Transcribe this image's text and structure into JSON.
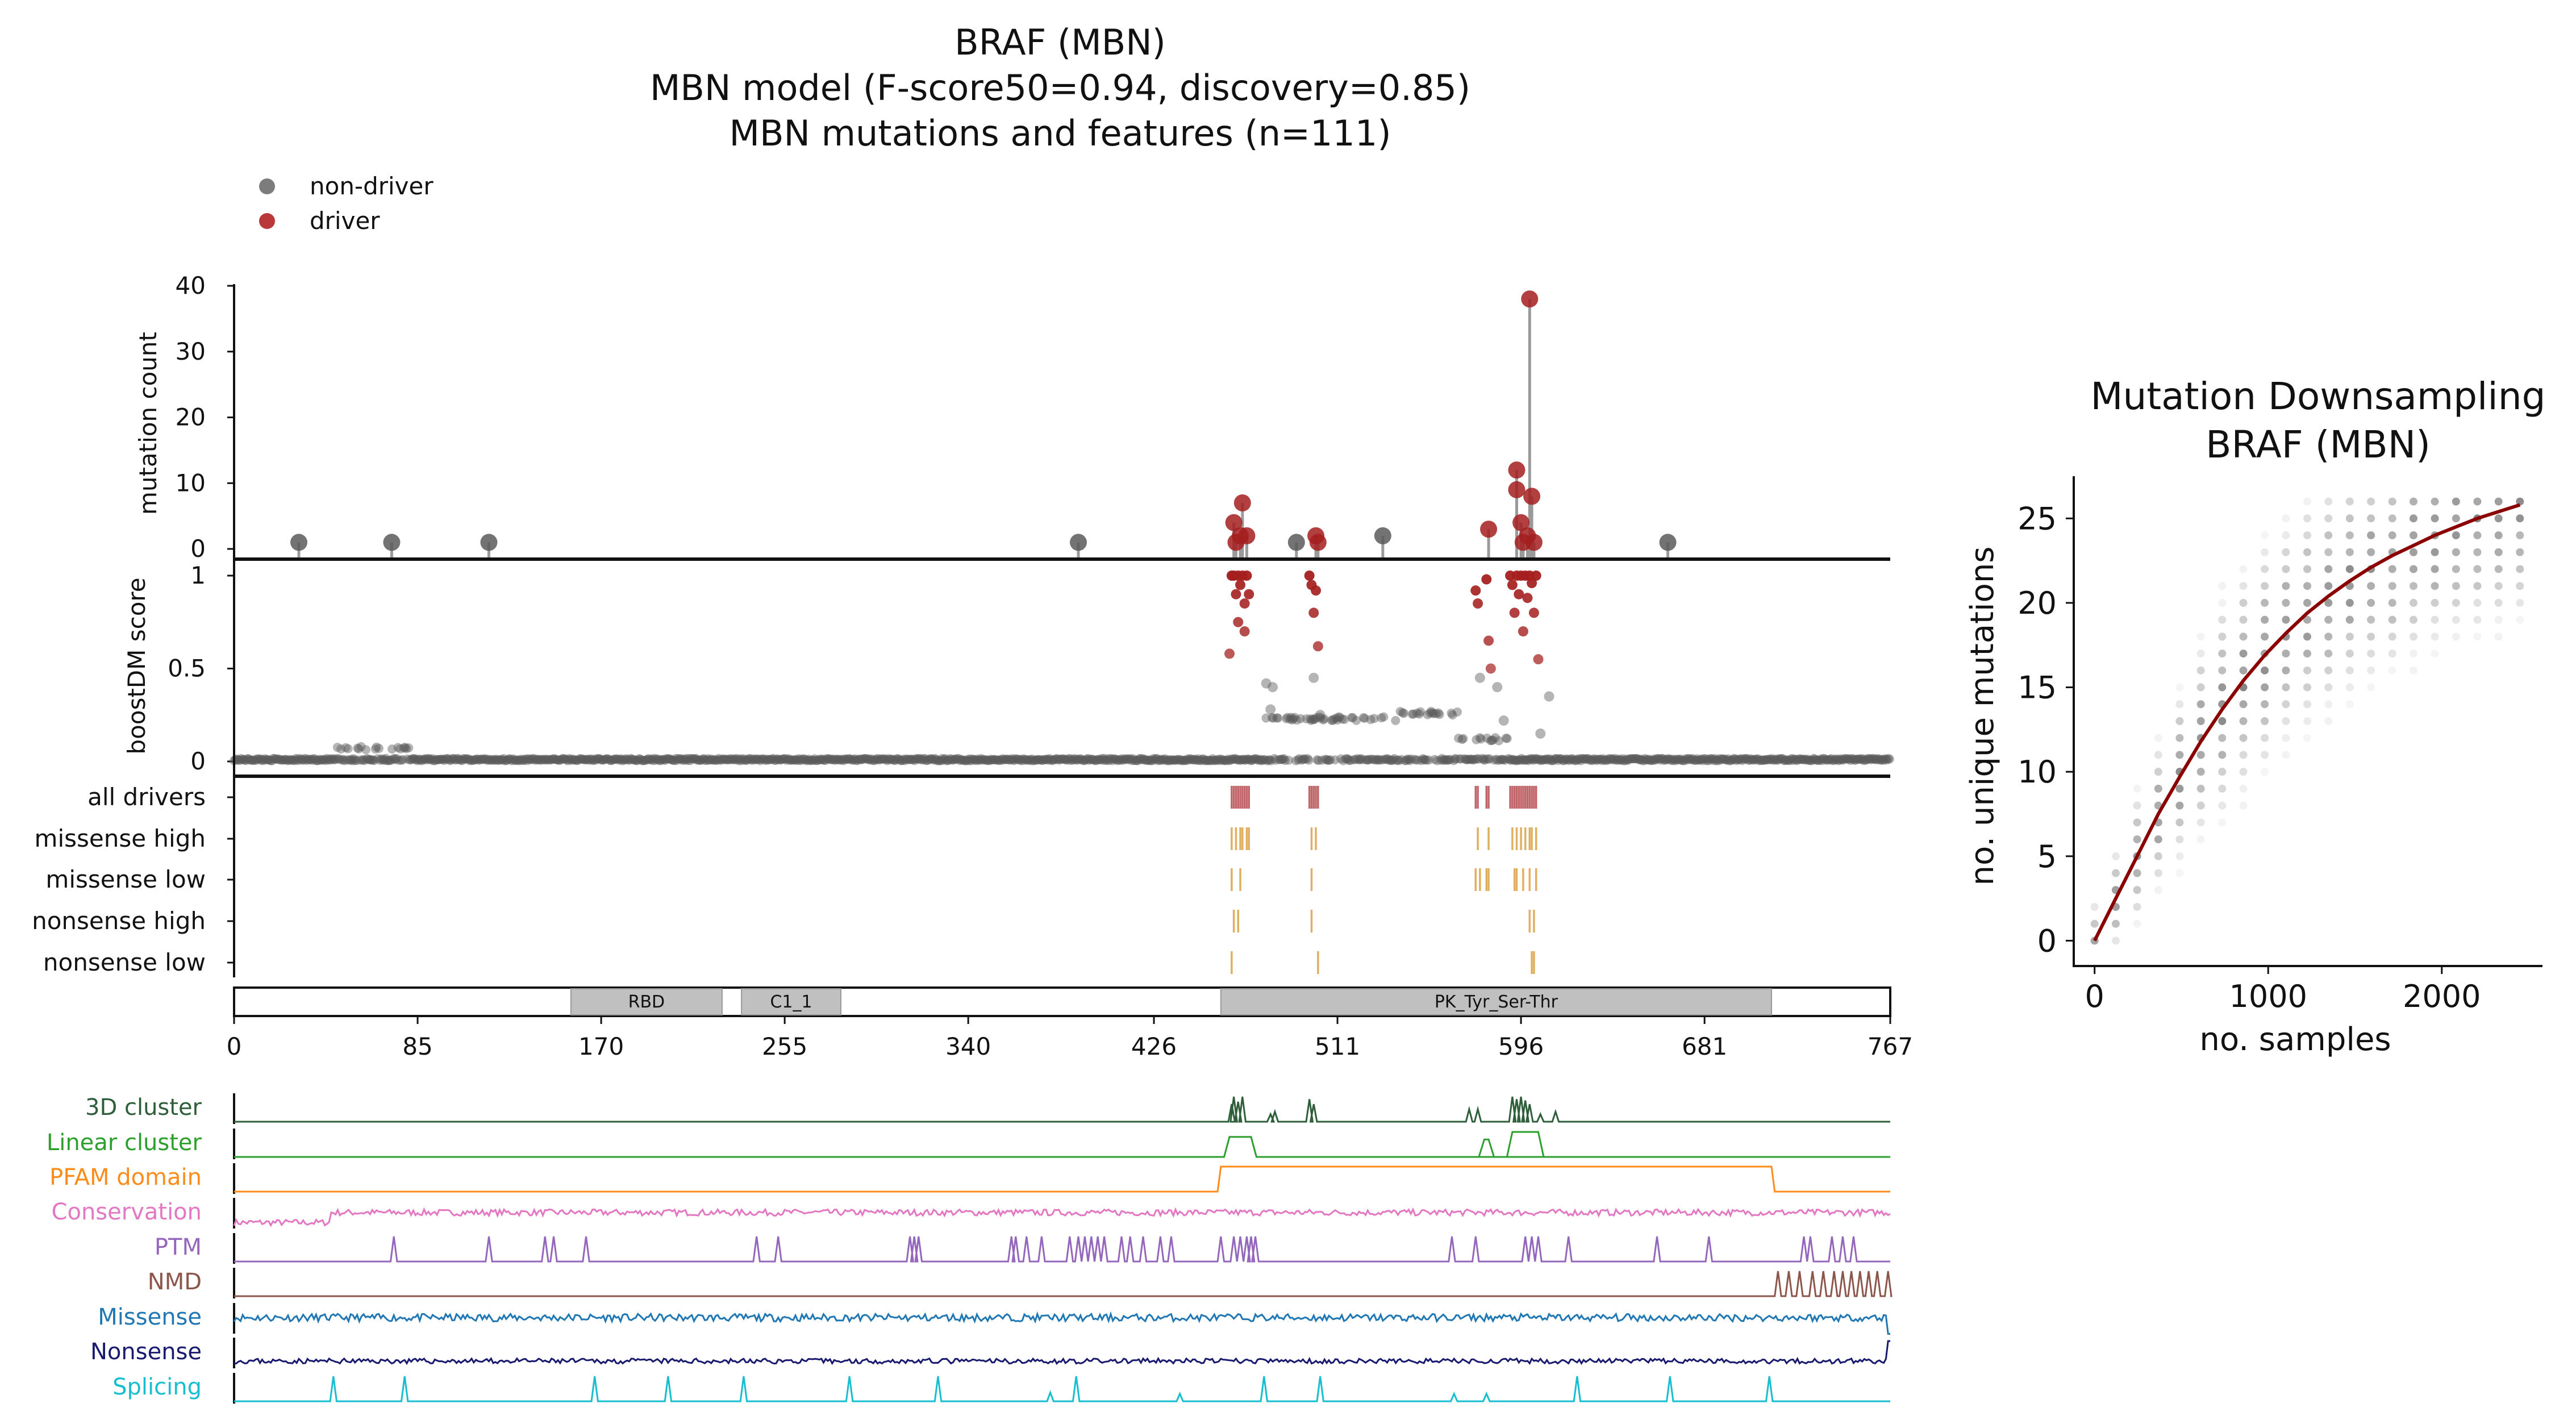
{
  "title_lines": [
    "BRAF (MBN)",
    "MBN model (F-score50=0.94, discovery=0.85)",
    "MBN mutations and features (n=111)"
  ],
  "legend": [
    {
      "label": "non-driver",
      "color": "#6e6e6e"
    },
    {
      "label": "driver",
      "color": "#b22222"
    }
  ],
  "colors": {
    "driver": "#a51f1f",
    "nondriver": "#5a5a5a",
    "stem": "#9a9a9a",
    "trace": "#8b0000",
    "domain_fill": "#c0c0c0"
  },
  "chart_data": [
    {
      "type": "scatter",
      "name": "mutation-count",
      "ylabel": "mutation count",
      "ylim": [
        0,
        40
      ],
      "yticks": [
        0,
        10,
        20,
        30,
        40
      ],
      "xlim": [
        0,
        767
      ],
      "points": [
        {
          "x": 30,
          "y": 1,
          "driver": false
        },
        {
          "x": 73,
          "y": 1,
          "driver": false
        },
        {
          "x": 118,
          "y": 1,
          "driver": false
        },
        {
          "x": 391,
          "y": 1,
          "driver": false
        },
        {
          "x": 463,
          "y": 4,
          "driver": true
        },
        {
          "x": 464,
          "y": 1,
          "driver": true
        },
        {
          "x": 466,
          "y": 2,
          "driver": true
        },
        {
          "x": 467,
          "y": 7,
          "driver": true
        },
        {
          "x": 469,
          "y": 2,
          "driver": true
        },
        {
          "x": 492,
          "y": 1,
          "driver": false
        },
        {
          "x": 501,
          "y": 2,
          "driver": true
        },
        {
          "x": 502,
          "y": 1,
          "driver": true
        },
        {
          "x": 532,
          "y": 2,
          "driver": false
        },
        {
          "x": 581,
          "y": 3,
          "driver": true
        },
        {
          "x": 594,
          "y": 12,
          "driver": true
        },
        {
          "x": 594,
          "y": 9,
          "driver": true
        },
        {
          "x": 596,
          "y": 4,
          "driver": true
        },
        {
          "x": 597,
          "y": 1,
          "driver": true
        },
        {
          "x": 599,
          "y": 2,
          "driver": true
        },
        {
          "x": 600,
          "y": 38,
          "driver": true
        },
        {
          "x": 601,
          "y": 8,
          "driver": true
        },
        {
          "x": 602,
          "y": 1,
          "driver": true
        },
        {
          "x": 664,
          "y": 1,
          "driver": false
        }
      ]
    },
    {
      "type": "scatter",
      "name": "boostdm-score",
      "ylabel": "boostDM score",
      "ylim": [
        0,
        1
      ],
      "yticks": [
        0,
        0.5,
        1
      ],
      "ytick_labels": [
        "0",
        "0.5",
        "1"
      ],
      "xlim": [
        0,
        767
      ],
      "baseline": 0.01,
      "raised_regions": [
        {
          "x0": 47,
          "x1": 82,
          "y": 0.07
        },
        {
          "x0": 476,
          "x1": 540,
          "y": 0.23
        },
        {
          "x0": 540,
          "x1": 567,
          "y": 0.26
        },
        {
          "x0": 566,
          "x1": 590,
          "y": 0.12
        }
      ],
      "highlights": [
        {
          "x": 461,
          "y": 0.58
        },
        {
          "x": 462,
          "y": 1.0
        },
        {
          "x": 463,
          "y": 1.0
        },
        {
          "x": 464,
          "y": 0.9
        },
        {
          "x": 465,
          "y": 1.0
        },
        {
          "x": 466,
          "y": 0.95
        },
        {
          "x": 467,
          "y": 1.0
        },
        {
          "x": 468,
          "y": 0.85
        },
        {
          "x": 469,
          "y": 1.0
        },
        {
          "x": 470,
          "y": 0.9
        },
        {
          "x": 465,
          "y": 0.75
        },
        {
          "x": 468,
          "y": 0.7
        },
        {
          "x": 498,
          "y": 1.0
        },
        {
          "x": 499,
          "y": 0.95
        },
        {
          "x": 500,
          "y": 0.8
        },
        {
          "x": 501,
          "y": 0.92
        },
        {
          "x": 502,
          "y": 0.62
        },
        {
          "x": 500,
          "y": 0.45
        },
        {
          "x": 503,
          "y": 0.25
        },
        {
          "x": 575,
          "y": 0.92
        },
        {
          "x": 576,
          "y": 0.85
        },
        {
          "x": 577,
          "y": 0.45
        },
        {
          "x": 580,
          "y": 0.98
        },
        {
          "x": 581,
          "y": 0.65
        },
        {
          "x": 582,
          "y": 0.5
        },
        {
          "x": 591,
          "y": 1.0
        },
        {
          "x": 592,
          "y": 0.95
        },
        {
          "x": 593,
          "y": 0.8
        },
        {
          "x": 594,
          "y": 1.0
        },
        {
          "x": 595,
          "y": 0.9
        },
        {
          "x": 596,
          "y": 1.0
        },
        {
          "x": 597,
          "y": 0.7
        },
        {
          "x": 598,
          "y": 1.0
        },
        {
          "x": 599,
          "y": 0.88
        },
        {
          "x": 600,
          "y": 1.0
        },
        {
          "x": 601,
          "y": 0.96
        },
        {
          "x": 602,
          "y": 0.8
        },
        {
          "x": 603,
          "y": 1.0
        },
        {
          "x": 604,
          "y": 0.55
        },
        {
          "x": 609,
          "y": 0.35
        },
        {
          "x": 478,
          "y": 0.42
        },
        {
          "x": 481,
          "y": 0.4
        },
        {
          "x": 480,
          "y": 0.28
        },
        {
          "x": 585,
          "y": 0.4
        },
        {
          "x": 588,
          "y": 0.22
        },
        {
          "x": 605,
          "y": 0.15
        }
      ]
    },
    {
      "type": "table",
      "name": "driver-tracks",
      "rows": [
        {
          "label": "all drivers",
          "color": "#c1666b",
          "x": [
            462,
            463,
            464,
            465,
            466,
            467,
            468,
            469,
            470,
            498,
            499,
            500,
            501,
            502,
            575,
            576,
            580,
            581,
            591,
            592,
            593,
            594,
            595,
            596,
            597,
            598,
            599,
            600,
            601,
            602,
            603
          ]
        },
        {
          "label": "missense high",
          "color": "#e0b060",
          "x": [
            462,
            464,
            466,
            467,
            469,
            470,
            499,
            501,
            576,
            581,
            592,
            594,
            596,
            598,
            600,
            601,
            603
          ]
        },
        {
          "label": "missense low",
          "color": "#e0b060",
          "x": [
            462,
            466,
            499,
            575,
            577,
            580,
            581,
            593,
            594,
            597,
            600,
            603
          ]
        },
        {
          "label": "nonsense high",
          "color": "#e0b060",
          "x": [
            463,
            465,
            499,
            600,
            602
          ]
        },
        {
          "label": "nonsense low",
          "color": "#e0b060",
          "x": [
            462,
            502,
            601,
            602
          ]
        }
      ]
    },
    {
      "type": "bar",
      "name": "protein-domains",
      "xlim": [
        0,
        767
      ],
      "xticks": [
        0,
        85,
        170,
        255,
        340,
        426,
        511,
        596,
        681,
        767
      ],
      "domains": [
        {
          "label": "RBD",
          "start": 156,
          "end": 226
        },
        {
          "label": "C1_1",
          "start": 235,
          "end": 281
        },
        {
          "label": "PK_Tyr_Ser-Thr",
          "start": 457,
          "end": 712
        }
      ]
    },
    {
      "type": "line",
      "name": "feature-tracks",
      "xlim": [
        0,
        767
      ],
      "tracks": [
        {
          "label": "3D cluster",
          "color": "#2e5e3a",
          "kind": "spikes",
          "spikes": [
            [
              462,
              0.7
            ],
            [
              463,
              1
            ],
            [
              465,
              0.8
            ],
            [
              467,
              1
            ],
            [
              480,
              0.3
            ],
            [
              482,
              0.4
            ],
            [
              498,
              0.9
            ],
            [
              500,
              0.7
            ],
            [
              572,
              0.5
            ],
            [
              576,
              0.5
            ],
            [
              592,
              1
            ],
            [
              594,
              0.9
            ],
            [
              596,
              1
            ],
            [
              598,
              0.85
            ],
            [
              600,
              0.7
            ],
            [
              605,
              0.3
            ],
            [
              612,
              0.4
            ]
          ]
        },
        {
          "label": "Linear cluster",
          "color": "#2ca02c",
          "kind": "plateaus",
          "plateaus": [
            [
              461,
              471,
              0.8
            ],
            [
              592,
              604,
              1
            ],
            [
              579,
              581,
              0.7
            ]
          ]
        },
        {
          "label": "PFAM domain",
          "color": "#ff8c1a",
          "kind": "step",
          "plateaus": [
            [
              457,
              712,
              1
            ]
          ]
        },
        {
          "label": "Conservation",
          "color": "#e377c2",
          "kind": "noise",
          "base": 0.35,
          "amp": 0.25,
          "seed": 7,
          "rise": [
            45,
            0.55
          ]
        },
        {
          "label": "PTM",
          "color": "#9467bd",
          "kind": "spikes",
          "spikes": [
            [
              74,
              1
            ],
            [
              118,
              1
            ],
            [
              144,
              1
            ],
            [
              148,
              1
            ],
            [
              163,
              1
            ],
            [
              242,
              1
            ],
            [
              252,
              1
            ],
            [
              313,
              1
            ],
            [
              315,
              1
            ],
            [
              317,
              1
            ],
            [
              360,
              1
            ],
            [
              362,
              1
            ],
            [
              367,
              1
            ],
            [
              374,
              1
            ],
            [
              387,
              1
            ],
            [
              391,
              1
            ],
            [
              394,
              1
            ],
            [
              397,
              1
            ],
            [
              400,
              1
            ],
            [
              403,
              1
            ],
            [
              411,
              1
            ],
            [
              415,
              1
            ],
            [
              421,
              1
            ],
            [
              429,
              1
            ],
            [
              434,
              1
            ],
            [
              457,
              1
            ],
            [
              463,
              1
            ],
            [
              466,
              1
            ],
            [
              469,
              1
            ],
            [
              471,
              1
            ],
            [
              473,
              1
            ],
            [
              564,
              1
            ],
            [
              575,
              1
            ],
            [
              598,
              1
            ],
            [
              601,
              1
            ],
            [
              604,
              1
            ],
            [
              618,
              1
            ],
            [
              659,
              1
            ],
            [
              683,
              1
            ],
            [
              727,
              1
            ],
            [
              730,
              1
            ],
            [
              740,
              1
            ],
            [
              745,
              1
            ],
            [
              750,
              1
            ]
          ]
        },
        {
          "label": "NMD",
          "color": "#8c564b",
          "kind": "spikes",
          "spikes": [
            [
              715,
              1
            ],
            [
              720,
              1
            ],
            [
              725,
              1
            ],
            [
              731,
              1
            ],
            [
              736,
              1
            ],
            [
              741,
              1
            ],
            [
              745,
              1
            ],
            [
              749,
              1
            ],
            [
              753,
              1
            ],
            [
              757,
              1
            ],
            [
              761,
              1
            ],
            [
              766,
              1
            ]
          ]
        },
        {
          "label": "Missense",
          "color": "#1f77b4",
          "kind": "noise",
          "base": 0.55,
          "amp": 0.3,
          "seed": 11,
          "rise": null
        },
        {
          "label": "Nonsense",
          "color": "#191970",
          "kind": "noise",
          "base": 0.2,
          "amp": 0.2,
          "seed": 23,
          "rise": null
        },
        {
          "label": "Splicing",
          "color": "#17becf",
          "kind": "spikes",
          "spikes": [
            [
              46,
              1
            ],
            [
              79,
              1
            ],
            [
              167,
              1
            ],
            [
              201,
              1
            ],
            [
              236,
              1
            ],
            [
              285,
              1
            ],
            [
              326,
              1
            ],
            [
              378,
              0.35
            ],
            [
              390,
              1
            ],
            [
              438,
              0.3
            ],
            [
              477,
              1
            ],
            [
              503,
              1
            ],
            [
              565,
              0.3
            ],
            [
              580,
              0.3
            ],
            [
              622,
              1
            ],
            [
              665,
              1
            ],
            [
              711,
              1
            ]
          ]
        }
      ]
    },
    {
      "type": "scatter",
      "name": "mutation-downsampling",
      "title_lines": [
        "Mutation Downsampling",
        "BRAF (MBN)"
      ],
      "xlabel": "no. samples",
      "ylabel": "no. unique mutations",
      "xlim": [
        -120,
        2580
      ],
      "ylim": [
        -1.5,
        27.5
      ],
      "xticks": [
        0,
        1000,
        2000
      ],
      "yticks": [
        0,
        5,
        10,
        15,
        20,
        25
      ],
      "sample_steps": [
        0,
        122,
        245,
        367,
        490,
        612,
        735,
        857,
        980,
        1102,
        1225,
        1347,
        1470,
        1592,
        1715,
        1837,
        1960,
        2082,
        2205,
        2327,
        2450
      ],
      "trend": [
        [
          0,
          0
        ],
        [
          122,
          2.5
        ],
        [
          245,
          5
        ],
        [
          367,
          7.5
        ],
        [
          490,
          9.7
        ],
        [
          612,
          11.8
        ],
        [
          735,
          13.7
        ],
        [
          857,
          15.4
        ],
        [
          980,
          16.9
        ],
        [
          1102,
          18.2
        ],
        [
          1225,
          19.4
        ],
        [
          1347,
          20.4
        ],
        [
          1470,
          21.3
        ],
        [
          1592,
          22.1
        ],
        [
          1715,
          22.8
        ],
        [
          1837,
          23.4
        ],
        [
          1960,
          24
        ],
        [
          2082,
          24.5
        ],
        [
          2205,
          25
        ],
        [
          2327,
          25.4
        ],
        [
          2450,
          25.8
        ]
      ]
    }
  ]
}
